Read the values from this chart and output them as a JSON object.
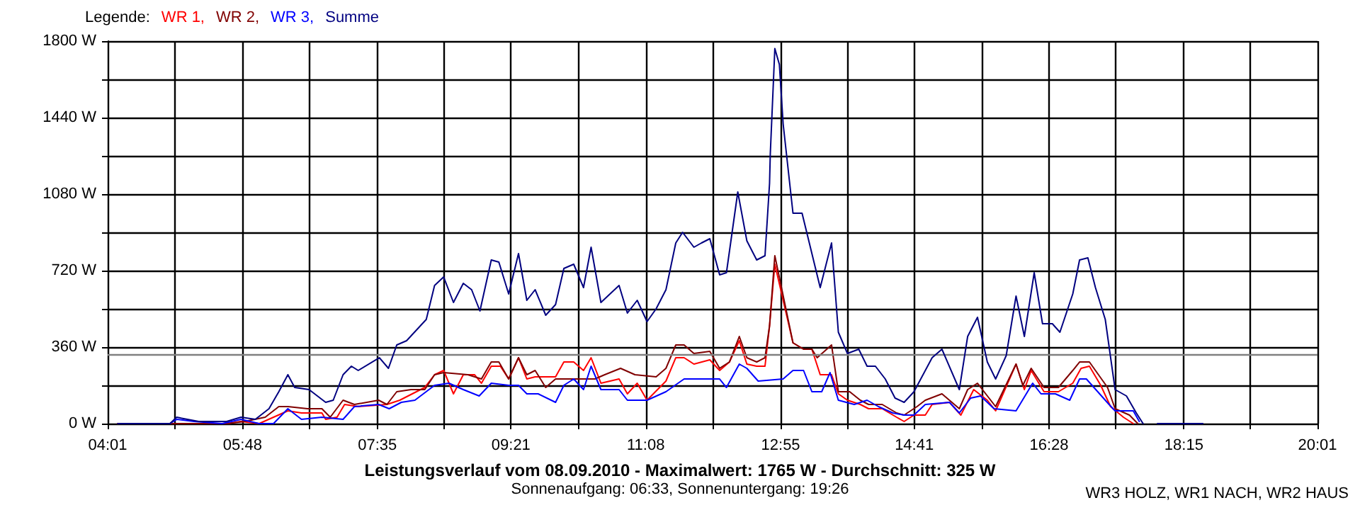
{
  "chart_data": {
    "type": "line",
    "title": "Leistungsverlauf vom 08.09.2010 - Maximalwert: 1765 W - Durchschnitt: 325 W",
    "subtitle": "Sonnenaufgang: 06:33, Sonnenuntergang: 19:26",
    "legend_title": "Legende:",
    "annotations": [
      "WR3 HOLZ, WR1 NACH, WR2 HAUS"
    ],
    "legend": "top left",
    "grid": true,
    "marker": "none",
    "line_style": "solid",
    "xlim": [
      4.0167,
      20.0167
    ],
    "xticks": [
      {
        "value": 4.0167,
        "label": "04:01"
      },
      {
        "value": 4.9056,
        "label": null
      },
      {
        "value": 5.8,
        "label": "05:48"
      },
      {
        "value": 6.6833,
        "label": null
      },
      {
        "value": 7.5833,
        "label": "07:35"
      },
      {
        "value": 8.4611,
        "label": null
      },
      {
        "value": 9.35,
        "label": "09:21"
      },
      {
        "value": 10.2389,
        "label": null
      },
      {
        "value": 11.1333,
        "label": "11:08"
      },
      {
        "value": 12.0167,
        "label": null
      },
      {
        "value": 12.9167,
        "label": "12:55"
      },
      {
        "value": 13.7944,
        "label": null
      },
      {
        "value": 14.6833,
        "label": "14:41"
      },
      {
        "value": 15.5722,
        "label": null
      },
      {
        "value": 16.4667,
        "label": "16:28"
      },
      {
        "value": 17.35,
        "label": null
      },
      {
        "value": 18.25,
        "label": "18:15"
      },
      {
        "value": 19.1278,
        "label": null
      },
      {
        "value": 20.0167,
        "label": "20:01"
      }
    ],
    "ylim": [
      0,
      1800
    ],
    "yticks": [
      {
        "value": 0,
        "label": "0 W"
      },
      {
        "value": 180,
        "label": null
      },
      {
        "value": 360,
        "label": "360 W"
      },
      {
        "value": 540,
        "label": null
      },
      {
        "value": 720,
        "label": "720 W"
      },
      {
        "value": 900,
        "label": null
      },
      {
        "value": 1080,
        "label": "1080 W"
      },
      {
        "value": 1260,
        "label": null
      },
      {
        "value": 1440,
        "label": "1440 W"
      },
      {
        "value": 1620,
        "label": null
      },
      {
        "value": 1800,
        "label": "1800 W"
      }
    ],
    "ref_lines": [
      {
        "axis": "y",
        "value": 325,
        "color": "#808080"
      }
    ],
    "series": [
      {
        "name": "WR 1,",
        "color": "#ff0000",
        "x": [
          4.15,
          5.59,
          5.78,
          6.02,
          6.21,
          6.4,
          6.58,
          6.85,
          6.9,
          7.05,
          7.15,
          7.33,
          7.71,
          7.88,
          8.21,
          8.34,
          8.46,
          8.59,
          8.72,
          8.87,
          8.96,
          9.09,
          9.21,
          9.32,
          9.45,
          9.56,
          9.67,
          9.94,
          10.05,
          10.18,
          10.31,
          10.41,
          10.54,
          10.78,
          10.89,
          11.02,
          11.15,
          11.4,
          11.53,
          11.64,
          11.77,
          11.98,
          12.11,
          12.24,
          12.37,
          12.47,
          12.6,
          12.71,
          12.77,
          12.84,
          13.08,
          13.22,
          13.33,
          13.44,
          13.59,
          13.68,
          13.8,
          13.97,
          14.08,
          14.26,
          14.45,
          14.55,
          14.68,
          14.83,
          14.92,
          15.15,
          15.3,
          15.47,
          15.65,
          15.76,
          16.03,
          16.14,
          16.23,
          16.4,
          16.59,
          16.78,
          16.89,
          17.0,
          17.15,
          17.28,
          17.45,
          17.58
        ],
        "values": [
          0,
          0,
          10,
          0,
          30,
          60,
          50,
          50,
          20,
          30,
          90,
          80,
          90,
          110,
          170,
          230,
          250,
          140,
          230,
          230,
          190,
          270,
          270,
          210,
          310,
          210,
          220,
          220,
          290,
          290,
          250,
          310,
          190,
          210,
          140,
          190,
          110,
          200,
          310,
          310,
          280,
          300,
          250,
          290,
          390,
          280,
          270,
          270,
          460,
          750,
          380,
          350,
          350,
          230,
          230,
          140,
          110,
          90,
          70,
          70,
          30,
          10,
          40,
          40,
          90,
          100,
          40,
          160,
          110,
          60,
          280,
          160,
          250,
          150,
          150,
          190,
          260,
          270,
          180,
          80,
          30,
          0
        ]
      },
      {
        "name": "WR 2,",
        "color": "#800000",
        "x": [
          4.15,
          5.59,
          5.83,
          6.1,
          6.28,
          6.4,
          6.66,
          6.85,
          6.96,
          7.13,
          7.28,
          7.6,
          7.71,
          7.84,
          8.03,
          8.21,
          8.34,
          8.46,
          8.78,
          8.96,
          9.09,
          9.19,
          9.32,
          9.45,
          9.56,
          9.67,
          9.81,
          9.94,
          10.46,
          10.59,
          10.8,
          10.99,
          11.27,
          11.4,
          11.53,
          11.64,
          11.77,
          11.98,
          12.11,
          12.24,
          12.37,
          12.47,
          12.6,
          12.71,
          12.77,
          12.84,
          13.08,
          13.22,
          13.33,
          13.4,
          13.59,
          13.68,
          13.83,
          13.97,
          14.08,
          14.26,
          14.45,
          14.55,
          14.72,
          14.83,
          15.05,
          15.28,
          15.39,
          15.52,
          15.76,
          16.03,
          16.12,
          16.23,
          16.4,
          16.59,
          16.78,
          16.87,
          17.0,
          17.24,
          17.34,
          17.53,
          17.64
        ],
        "values": [
          0,
          0,
          10,
          30,
          80,
          80,
          70,
          70,
          30,
          110,
          90,
          110,
          90,
          150,
          160,
          160,
          230,
          240,
          230,
          210,
          290,
          290,
          210,
          310,
          230,
          250,
          170,
          210,
          210,
          230,
          260,
          230,
          220,
          260,
          370,
          370,
          330,
          340,
          260,
          290,
          410,
          310,
          290,
          310,
          460,
          790,
          380,
          350,
          350,
          310,
          370,
          150,
          150,
          110,
          90,
          90,
          50,
          40,
          80,
          110,
          140,
          70,
          160,
          190,
          80,
          280,
          180,
          260,
          170,
          170,
          250,
          290,
          290,
          170,
          70,
          40,
          0
        ]
      },
      {
        "name": "WR 3,",
        "color": "#0000ff",
        "x": [
          4.28,
          4.84,
          4.93,
          5.16,
          5.53,
          5.78,
          6.02,
          6.21,
          6.4,
          6.58,
          6.85,
          7.13,
          7.28,
          7.6,
          7.74,
          7.9,
          8.08,
          8.34,
          8.53,
          8.72,
          8.93,
          9.09,
          9.32,
          9.45,
          9.56,
          9.71,
          9.94,
          10.05,
          10.18,
          10.31,
          10.41,
          10.54,
          10.78,
          10.89,
          11.15,
          11.4,
          11.64,
          12.11,
          12.2,
          12.37,
          12.47,
          12.62,
          12.95,
          13.08,
          13.22,
          13.33,
          13.46,
          13.57,
          13.68,
          13.89,
          14.06,
          14.21,
          14.4,
          14.55,
          14.68,
          14.83,
          15.15,
          15.28,
          15.43,
          15.56,
          15.74,
          16.03,
          16.25,
          16.36,
          16.55,
          16.74,
          16.87,
          16.96,
          17.26,
          17.34,
          17.58,
          17.66
        ],
        "values": [
          0,
          0,
          20,
          10,
          0,
          20,
          0,
          0,
          70,
          20,
          30,
          20,
          80,
          90,
          70,
          100,
          110,
          180,
          190,
          160,
          130,
          190,
          180,
          180,
          140,
          140,
          100,
          180,
          210,
          160,
          270,
          160,
          160,
          110,
          110,
          150,
          210,
          210,
          170,
          280,
          260,
          200,
          210,
          250,
          250,
          150,
          150,
          240,
          110,
          90,
          110,
          80,
          50,
          40,
          40,
          90,
          100,
          50,
          120,
          130,
          70,
          60,
          190,
          140,
          140,
          110,
          210,
          210,
          90,
          60,
          60,
          10
        ]
      },
      {
        "name": "Summe",
        "color": "#000080",
        "x": [
          4.15,
          4.84,
          4.93,
          5.07,
          5.22,
          5.59,
          5.78,
          5.97,
          6.15,
          6.28,
          6.4,
          6.49,
          6.68,
          6.9,
          7.0,
          7.13,
          7.24,
          7.33,
          7.61,
          7.73,
          7.84,
          7.97,
          8.23,
          8.34,
          8.46,
          8.59,
          8.72,
          8.83,
          8.94,
          9.09,
          9.19,
          9.32,
          9.45,
          9.56,
          9.67,
          9.81,
          9.94,
          10.05,
          10.18,
          10.31,
          10.41,
          10.54,
          10.78,
          10.89,
          11.02,
          11.15,
          11.27,
          11.4,
          11.53,
          11.62,
          11.77,
          11.87,
          11.98,
          12.11,
          12.2,
          12.35,
          12.47,
          12.6,
          12.71,
          12.77,
          12.78,
          12.84,
          12.9,
          12.95,
          13.08,
          13.2,
          13.44,
          13.59,
          13.68,
          13.8,
          13.95,
          14.06,
          14.17,
          14.3,
          14.43,
          14.55,
          14.68,
          14.92,
          15.05,
          15.28,
          15.39,
          15.52,
          15.65,
          15.76,
          15.9,
          16.03,
          16.14,
          16.27,
          16.38,
          16.51,
          16.61,
          16.78,
          16.87,
          16.98,
          17.08,
          17.21,
          17.34,
          17.49,
          17.62,
          17.71,
          17.8,
          17.9,
          18.5
        ],
        "values": [
          0,
          0,
          30,
          20,
          10,
          10,
          30,
          20,
          70,
          150,
          230,
          170,
          160,
          100,
          110,
          230,
          270,
          250,
          310,
          260,
          370,
          390,
          490,
          650,
          690,
          570,
          660,
          630,
          530,
          770,
          760,
          610,
          800,
          580,
          630,
          510,
          560,
          730,
          750,
          640,
          830,
          570,
          650,
          520,
          580,
          480,
          540,
          630,
          850,
          900,
          830,
          850,
          870,
          700,
          710,
          1090,
          860,
          770,
          790,
          1130,
          1270,
          1765,
          1690,
          1410,
          990,
          990,
          640,
          850,
          430,
          330,
          350,
          270,
          270,
          210,
          120,
          100,
          150,
          310,
          350,
          160,
          410,
          500,
          290,
          210,
          320,
          600,
          410,
          710,
          470,
          470,
          430,
          610,
          770,
          780,
          640,
          490,
          160,
          130,
          50,
          0,
          null,
          0,
          0
        ]
      }
    ]
  }
}
